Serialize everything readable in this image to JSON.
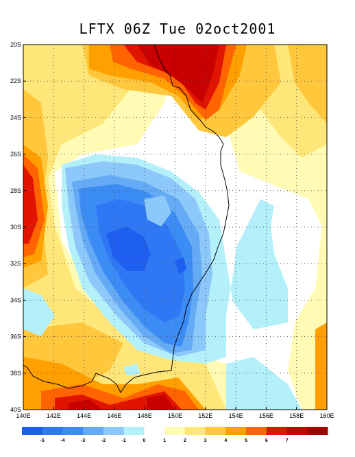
{
  "title": "LFTX 06Z Tue 02oct2001",
  "map": {
    "lat_labels": [
      "20S",
      "22S",
      "24S",
      "26S",
      "28S",
      "30S",
      "32S",
      "34S",
      "36S",
      "38S",
      "40S"
    ],
    "lon_labels": [
      "140E",
      "142E",
      "144E",
      "146E",
      "148E",
      "150E",
      "152E",
      "154E",
      "156E",
      "158E",
      "160E"
    ],
    "lat_range": [
      -40,
      -20
    ],
    "lon_range": [
      140,
      160
    ],
    "grid": "dotted"
  },
  "colorbar": {
    "colors": [
      "#1e5ff0",
      "#2e78f5",
      "#3c8cf5",
      "#64aaf5",
      "#8cc8fa",
      "#b4f0fa",
      "#ffffff",
      "#fffab4",
      "#ffe678",
      "#ffc83c",
      "#ffa000",
      "#ff6400",
      "#e11400",
      "#c80000",
      "#a00000"
    ],
    "labels": [
      "-5",
      "-4",
      "-3",
      "-2",
      "-1",
      "0",
      "1",
      "2",
      "3",
      "4",
      "5",
      "6",
      "7"
    ]
  },
  "colors": {
    "pos1": "#fffab4",
    "pos2": "#ffe678",
    "pos3": "#ffc83c",
    "pos4": "#ffa000",
    "pos5": "#ff6400",
    "pos6": "#e11400",
    "pos7": "#c80000",
    "pos8": "#a00000",
    "neg1": "#b4f0fa",
    "neg2": "#8cc8fa",
    "neg3": "#64aaf5",
    "neg4": "#3c8cf5",
    "neg5": "#2e78f5",
    "neg6": "#1e5ff0"
  }
}
